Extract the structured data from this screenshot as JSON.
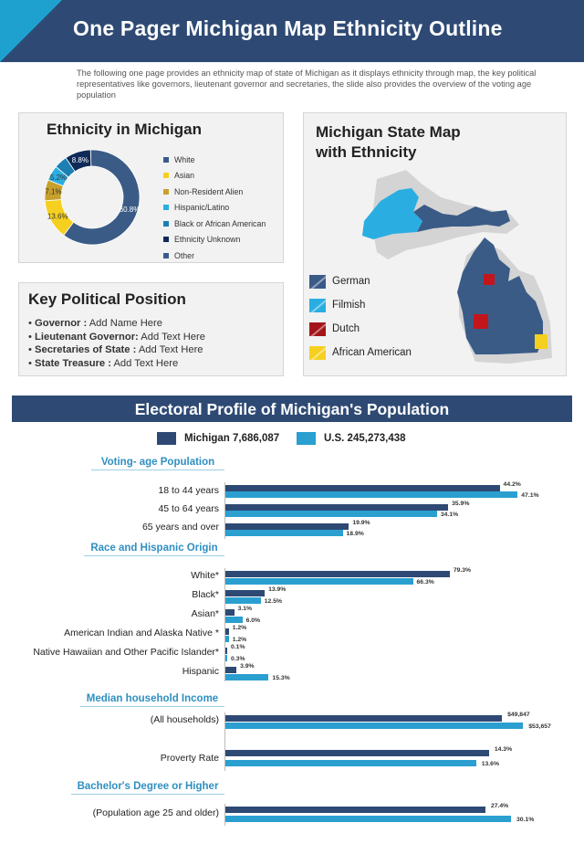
{
  "header": {
    "title": "One Pager Michigan Map Ethnicity Outline",
    "intro": "The following one page provides an ethnicity map of state of Michigan as it displays ethnicity through map, the key political representatives like governors, lieutenant governor and secretaries, the slide also provides the overview of the voting age population"
  },
  "ethnicity": {
    "title": "Ethnicity in Michigan",
    "legend": [
      {
        "label": "White",
        "color": "#3b5b87"
      },
      {
        "label": "Asian",
        "color": "#f5d020"
      },
      {
        "label": "Non-Resident Alien",
        "color": "#c7a12c"
      },
      {
        "label": "Hispanic/Latino",
        "color": "#2aaee2"
      },
      {
        "label": "Black or African American",
        "color": "#1c7fb3"
      },
      {
        "label": "Ethnicity Unknown",
        "color": "#0f2a57"
      },
      {
        "label": "Other",
        "color": "#3b5b87"
      }
    ],
    "slices": [
      {
        "label": "White",
        "value": 60.8,
        "text": "60.8%",
        "color": "#3b5b87"
      },
      {
        "label": "Asian",
        "value": 13.6,
        "text": "13.6%",
        "color": "#f5d020"
      },
      {
        "label": "Non-Resident Alien",
        "value": 7.1,
        "text": "7.1%",
        "color": "#c7a12c"
      },
      {
        "label": "Hispanic/Latino",
        "value": 5.2,
        "text": "5.2%",
        "color": "#2aaee2"
      },
      {
        "label": "Black or African American",
        "value": 4.5,
        "text": "",
        "color": "#1c7fb3"
      },
      {
        "label": "Ethnicity Unknown",
        "value": 8.8,
        "text": "8.8%",
        "color": "#0f2a57"
      }
    ]
  },
  "key_political": {
    "title": "Key Political Position",
    "rows": [
      {
        "bullet": "•",
        "label": "Governor :",
        "value": " Add Name Here"
      },
      {
        "bullet": "•",
        "label": "Lieutenant Governor:",
        "value": " Add Text Here"
      },
      {
        "bullet": "•",
        "label": " Secretaries of State :",
        "value": "  Add Text Here"
      },
      {
        "bullet": "•",
        "label": "State Treasure :",
        "value": " Add Text Here"
      }
    ]
  },
  "map": {
    "title_line1": "Michigan State Map",
    "title_line2": "with Ethnicity",
    "legend": [
      {
        "label": "German",
        "color": "#3b5b87"
      },
      {
        "label": "Filmish",
        "color": "#2aaee2"
      },
      {
        "label": "Dutch",
        "color": "#a3151b"
      },
      {
        "label": "African American",
        "color": "#f5d020"
      }
    ]
  },
  "electoral": {
    "title": "Electoral Profile of Michigan's Population",
    "legend": [
      {
        "label": "Michigan 7,686,087",
        "color": "#2e4a74"
      },
      {
        "label": "U.S. 245,273,438",
        "color": "#2a9fd0"
      }
    ],
    "sections": {
      "voting": "Voting- age Population",
      "race": "Race and Hispanic Origin",
      "income": "Median household Income",
      "degree": "Bachelor's Degree or Higher"
    },
    "rows": {
      "age_18_44": {
        "label": "18 to 44 years",
        "mi": 44.2,
        "us": 47.1,
        "mi_text": "44.2%",
        "us_text": "47.1%"
      },
      "age_45_64": {
        "label": "45 to 64 years",
        "mi": 35.9,
        "us": 34.1,
        "mi_text": "35.9%",
        "us_text": "34.1%"
      },
      "age_65": {
        "label": "65 years and over",
        "mi": 19.9,
        "us": 18.9,
        "mi_text": "19.9%",
        "us_text": "18.9%"
      },
      "white": {
        "label": "White*",
        "mi": 79.3,
        "us": 66.3,
        "mi_text": "79.3%",
        "us_text": "66.3%"
      },
      "black": {
        "label": "Black*",
        "mi": 13.9,
        "us": 12.5,
        "mi_text": "13.9%",
        "us_text": "12.5%"
      },
      "asian": {
        "label": "Asian*",
        "mi": 3.1,
        "us": 6.0,
        "mi_text": "3.1%",
        "us_text": "6.0%"
      },
      "aian": {
        "label": "American Indian and Alaska Native *",
        "mi": 1.2,
        "us": 1.2,
        "mi_text": "1.2%",
        "us_text": "1.2%"
      },
      "nhpi": {
        "label": "Native Hawaiian and Other Pacific Islander*",
        "mi": 0.1,
        "us": 0.3,
        "mi_text": "0.1%",
        "us_text": "0.3%"
      },
      "hispanic": {
        "label": "Hispanic",
        "mi": 3.9,
        "us": 15.3,
        "mi_text": "3.9%",
        "us_text": "15.3%"
      },
      "income": {
        "label": "(All households)",
        "mi": 49847,
        "us": 53657,
        "mi_text": "$49,847",
        "us_text": "$53,657"
      },
      "poverty": {
        "label": "Proverty Rate",
        "mi": 14.3,
        "us": 13.6,
        "mi_text": "14.3%",
        "us_text": "13.6%"
      },
      "degree": {
        "label": "(Population age 25 and older)",
        "mi": 27.4,
        "us": 30.1,
        "mi_text": "27.4%",
        "us_text": "30.1%"
      }
    }
  }
}
